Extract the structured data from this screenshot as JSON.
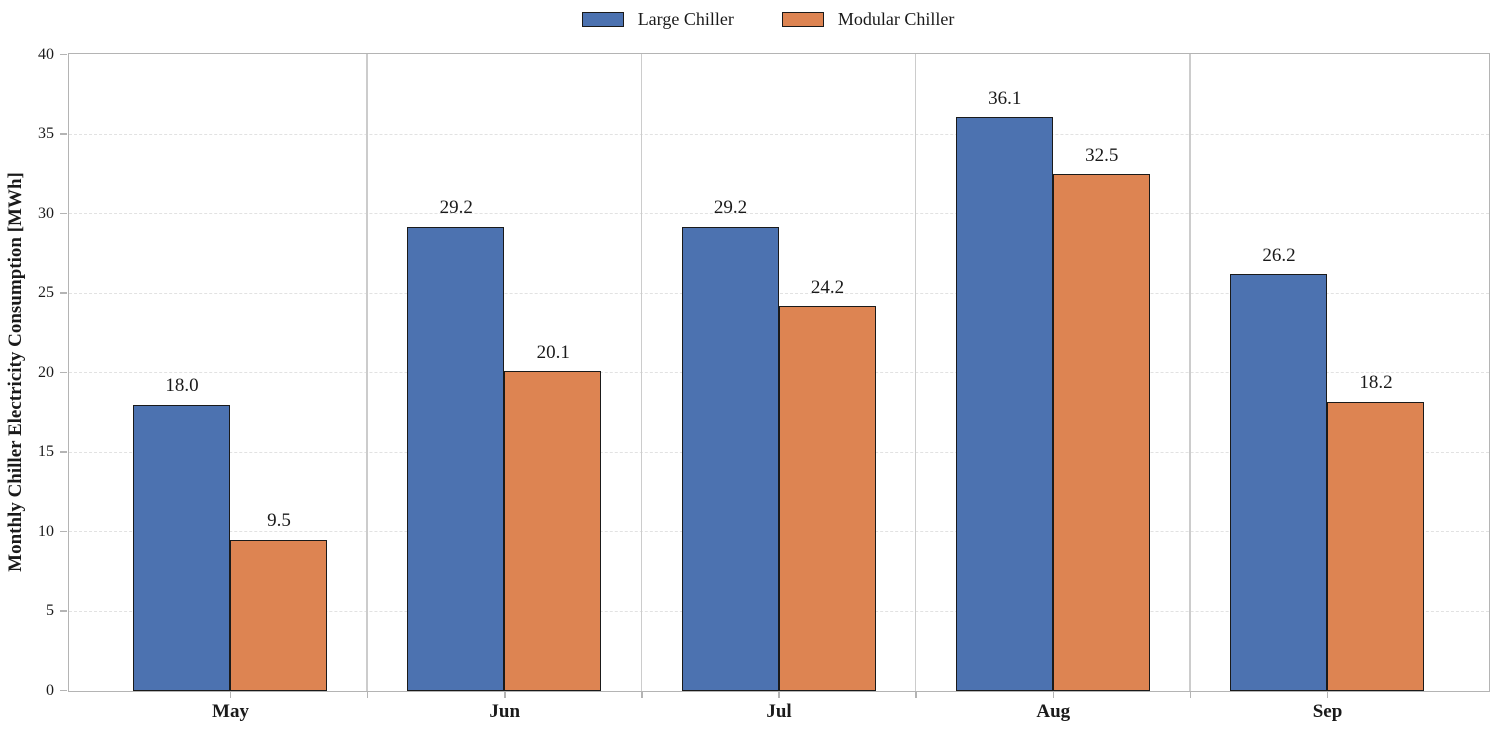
{
  "chart_data": {
    "type": "bar",
    "title": "",
    "categories": [
      "May",
      "Jun",
      "Jul",
      "Aug",
      "Sep"
    ],
    "series": [
      {
        "name": "Large Chiller",
        "color": "#4C72B0",
        "values": [
          18.0,
          29.2,
          29.2,
          36.1,
          26.2
        ]
      },
      {
        "name": "Modular Chiller",
        "color": "#DD8452",
        "values": [
          9.5,
          20.1,
          24.2,
          32.5,
          18.2
        ]
      }
    ],
    "xlabel": "",
    "ylabel": "Monthly Chiller Electricity Consumption [MWh]",
    "ylim": [
      0,
      40
    ],
    "yticks": [
      0,
      5,
      10,
      15,
      20,
      25,
      30,
      35,
      40
    ],
    "grid": "horizontal-dashed",
    "group_separators": true,
    "legend_position": "top-center",
    "value_labels_decimals": 1,
    "colors": {
      "bar_edge": "#1a1a1a",
      "grid": "#e2e2e2",
      "separator": "#cccccc",
      "spine": "#b4b4b4",
      "text": "#1a1a1a",
      "background": "#ffffff"
    }
  }
}
